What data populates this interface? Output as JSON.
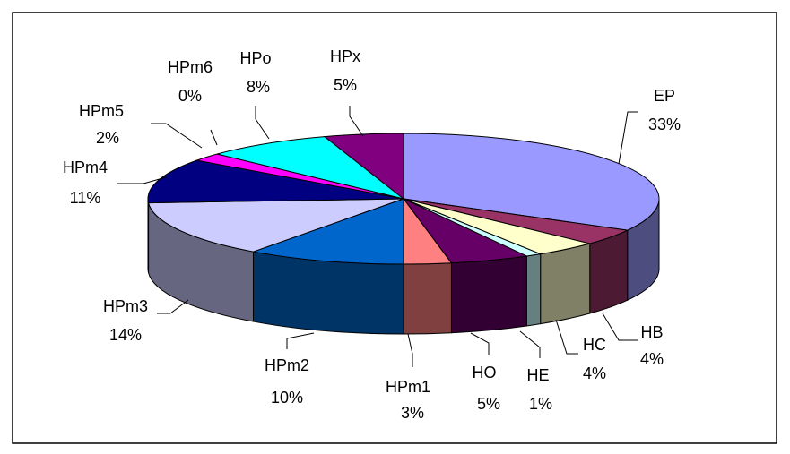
{
  "chart_data": {
    "type": "pie3d",
    "categories": [
      "EP",
      "HB",
      "HC",
      "HE",
      "HO",
      "HPm1",
      "HPm2",
      "HPm3",
      "HPm4",
      "HPm5",
      "HPm6",
      "HPo",
      "HPx"
    ],
    "values": [
      33,
      4,
      4,
      1,
      5,
      3,
      10,
      14,
      11,
      2,
      0,
      8,
      5
    ],
    "value_labels": [
      "33%",
      "4%",
      "4%",
      "1%",
      "5%",
      "3%",
      "10%",
      "14%",
      "11%",
      "2%",
      "0%",
      "8%",
      "5%"
    ],
    "colors": [
      "#9999ff",
      "#993366",
      "#ffffcc",
      "#ccffff",
      "#660066",
      "#ff8080",
      "#0066cc",
      "#ccccff",
      "#000080",
      "#ff00ff",
      "#ffff00",
      "#00ffff",
      "#800080"
    ]
  }
}
